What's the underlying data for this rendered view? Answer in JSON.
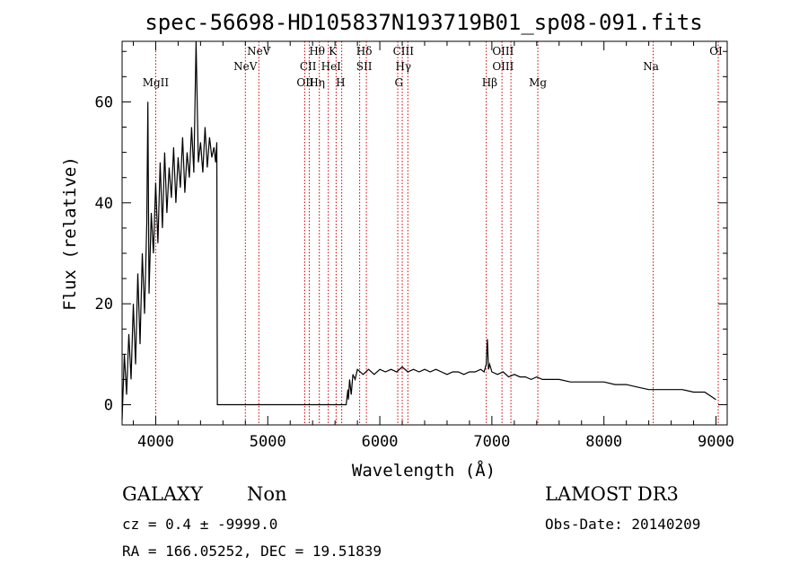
{
  "chart_data": {
    "type": "line",
    "title": "spec-56698-HD105837N193719B01_sp08-091.fits",
    "xlabel": "Wavelength (Å)",
    "ylabel": "Flux (relative)",
    "xlim": [
      3700,
      9100
    ],
    "ylim": [
      -4,
      72
    ],
    "xticks": [
      4000,
      5000,
      6000,
      7000,
      8000,
      9000
    ],
    "yticks": [
      0,
      20,
      40,
      60
    ],
    "grid": false,
    "legend": "none",
    "series": [
      {
        "name": "flux",
        "x": [
          3700,
          3720,
          3740,
          3760,
          3780,
          3800,
          3820,
          3840,
          3860,
          3880,
          3900,
          3920,
          3930,
          3940,
          3960,
          3980,
          4000,
          4020,
          4040,
          4060,
          4080,
          4100,
          4120,
          4140,
          4160,
          4180,
          4200,
          4220,
          4240,
          4260,
          4280,
          4300,
          4320,
          4340,
          4360,
          4380,
          4400,
          4420,
          4440,
          4460,
          4480,
          4500,
          4520,
          4535,
          4540,
          4545,
          4550,
          4600,
          4700,
          4800,
          4900,
          5000,
          5100,
          5200,
          5300,
          5400,
          5500,
          5600,
          5700,
          5715,
          5720,
          5730,
          5745,
          5760,
          5780,
          5800,
          5850,
          5900,
          5950,
          6000,
          6050,
          6100,
          6150,
          6200,
          6250,
          6300,
          6350,
          6400,
          6450,
          6500,
          6550,
          6600,
          6650,
          6700,
          6750,
          6800,
          6850,
          6900,
          6930,
          6950,
          6960,
          6970,
          6980,
          7000,
          7050,
          7100,
          7150,
          7200,
          7250,
          7300,
          7350,
          7400,
          7450,
          7500,
          7600,
          7700,
          7800,
          7900,
          8000,
          8100,
          8200,
          8300,
          8400,
          8450,
          8500,
          8600,
          8700,
          8800,
          8900,
          9000
        ],
        "values": [
          -3,
          10,
          2,
          14,
          5,
          20,
          8,
          26,
          12,
          30,
          18,
          36,
          60,
          22,
          38,
          30,
          44,
          32,
          48,
          35,
          50,
          38,
          47,
          41,
          51,
          40,
          49,
          43,
          53,
          42,
          50,
          45,
          55,
          46,
          72,
          48,
          52,
          46,
          55,
          47,
          53,
          49,
          51,
          48,
          50,
          52,
          0,
          0,
          0,
          0,
          0,
          0,
          0,
          0,
          0,
          0,
          0,
          0,
          0,
          3,
          1,
          5,
          2,
          6,
          5,
          7,
          6,
          7,
          6,
          7,
          6.5,
          7,
          6.5,
          7.5,
          6.5,
          7,
          6.5,
          7,
          6.5,
          7,
          6.5,
          6,
          6.5,
          6.5,
          6,
          6.5,
          6.5,
          7,
          6.5,
          8,
          13,
          7,
          8,
          6.5,
          6,
          6.5,
          5.5,
          6,
          5.5,
          5.5,
          5,
          5.5,
          5,
          5,
          5,
          4.5,
          4.5,
          4.5,
          4.5,
          4,
          4,
          3.5,
          3,
          3,
          3,
          3,
          3,
          2.5,
          2.5,
          1
        ]
      }
    ],
    "lines": [
      {
        "label": "MgII",
        "x": 4000,
        "tier": 3
      },
      {
        "label": "NeV",
        "x": 4800,
        "tier": 2
      },
      {
        "label": "NeV",
        "x": 4920,
        "tier": 1
      },
      {
        "label": "OII",
        "x": 5335,
        "tier": 3
      },
      {
        "label": "CII",
        "x": 5360,
        "tier": 2
      },
      {
        "label": "Hθ",
        "x": 5440,
        "tier": 1
      },
      {
        "label": "Hη",
        "x": 5440,
        "tier": 3
      },
      {
        "label": "HeI",
        "x": 5565,
        "tier": 2
      },
      {
        "label": "K",
        "x": 5580,
        "tier": 1
      },
      {
        "label": "H",
        "x": 5650,
        "tier": 3
      },
      {
        "label": "Hδ",
        "x": 5860,
        "tier": 1
      },
      {
        "label": "SII",
        "x": 5860,
        "tier": 2
      },
      {
        "label": "CIII",
        "x": 6210,
        "tier": 1
      },
      {
        "label": "Hγ",
        "x": 6210,
        "tier": 2
      },
      {
        "label": "G",
        "x": 6170,
        "tier": 3
      },
      {
        "label": "Hβ",
        "x": 6980,
        "tier": 3
      },
      {
        "label": "OIII",
        "x": 7100,
        "tier": 1
      },
      {
        "label": "OIII",
        "x": 7100,
        "tier": 2
      },
      {
        "label": "Mg",
        "x": 7410,
        "tier": 3
      },
      {
        "label": "Na",
        "x": 8420,
        "tier": 2
      },
      {
        "label": "OI",
        "x": 9000,
        "tier": 1
      }
    ],
    "line_positions": [
      4000,
      4800,
      4920,
      5330,
      5370,
      5460,
      5540,
      5610,
      5660,
      5820,
      5880,
      6160,
      6200,
      6250,
      6950,
      7090,
      7170,
      7410,
      8440,
      9020
    ]
  },
  "info": {
    "class": "GALAXY",
    "subclass": "Non",
    "cz": "cz = 0.4 ± -9999.0",
    "coords": "RA = 166.05252, DEC =  19.51839",
    "survey": "LAMOST DR3",
    "obsdate": "Obs-Date: 20140209"
  },
  "colors": {
    "line_marker": "#cc0000",
    "spectrum": "#000000",
    "background": "#ffffff"
  }
}
